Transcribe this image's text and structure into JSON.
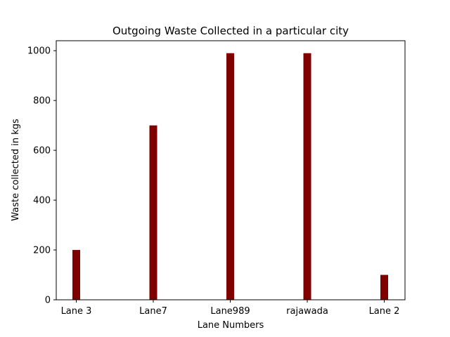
{
  "chart_data": {
    "type": "bar",
    "title": "Outgoing Waste Collected in a particular city",
    "xlabel": "Lane Numbers",
    "ylabel": "Waste collected in kgs",
    "categories": [
      "Lane 3",
      "Lane7",
      "Lane989",
      "rajawada",
      "Lane 2"
    ],
    "values": [
      200,
      700,
      990,
      990,
      100
    ],
    "ylim": [
      0,
      1040
    ],
    "yticks": [
      0,
      200,
      400,
      600,
      800,
      1000
    ],
    "bar_color": "#800000",
    "grid": false,
    "legend": "none"
  }
}
